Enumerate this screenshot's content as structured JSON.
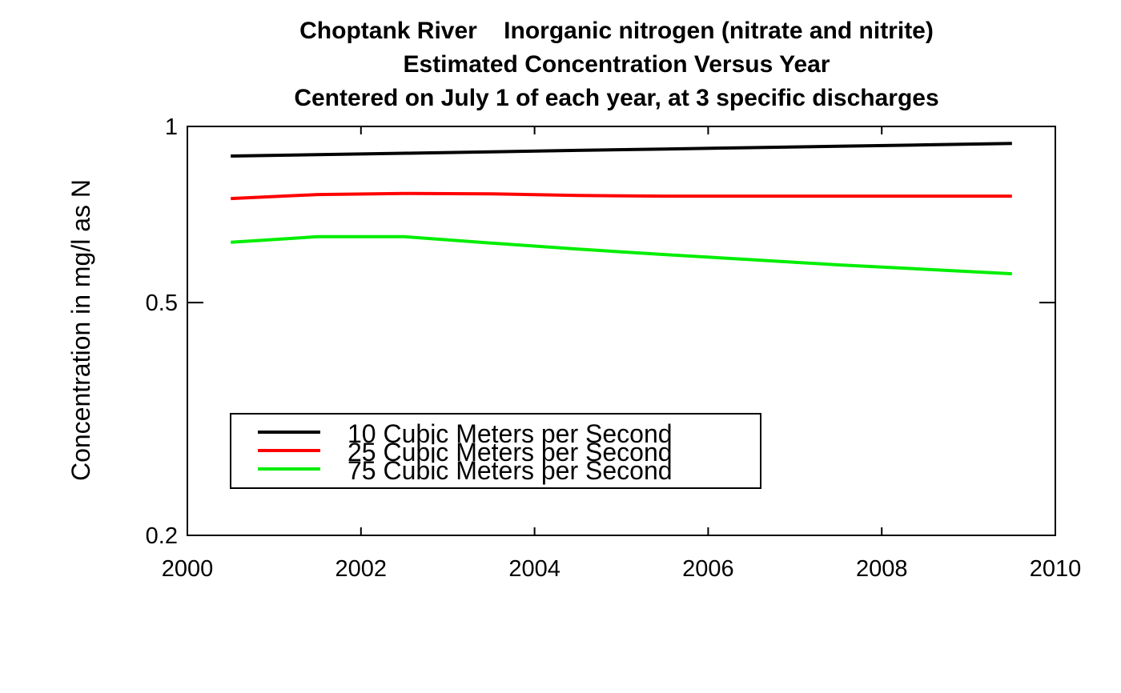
{
  "chart_data": {
    "type": "line",
    "title": [
      "Choptank River    Inorganic nitrogen (nitrate and nitrite)",
      "Estimated Concentration Versus Year",
      "Centered on July 1 of each year, at 3 specific discharges"
    ],
    "xlabel": "",
    "ylabel": "Concentration in mg/l as N",
    "xlim": [
      2000,
      2010
    ],
    "ylim": [
      0.2,
      1
    ],
    "yscale": "log",
    "xticks": [
      2000,
      2002,
      2004,
      2006,
      2008,
      2010
    ],
    "xtick_labels": [
      "2000",
      "2002",
      "2004",
      "2006",
      "2008",
      "2010"
    ],
    "yticks": [
      0.2,
      0.5,
      1
    ],
    "ytick_labels": [
      "0.2",
      "0.5",
      "1"
    ],
    "grid": false,
    "legend_position": "bottom-left",
    "x": [
      2000.5,
      2001.5,
      2002.5,
      2003.5,
      2004.5,
      2005.5,
      2006.5,
      2007.5,
      2008.5,
      2009.5
    ],
    "series": [
      {
        "name": "10 Cubic Meters per Second",
        "color": "#000000",
        "values": [
          0.89,
          0.895,
          0.9,
          0.905,
          0.91,
          0.915,
          0.92,
          0.925,
          0.93,
          0.935
        ]
      },
      {
        "name": "25 Cubic Meters per Second",
        "color": "#ff0000",
        "values": [
          0.753,
          0.765,
          0.768,
          0.767,
          0.762,
          0.76,
          0.76,
          0.76,
          0.76,
          0.76
        ]
      },
      {
        "name": "75 Cubic Meters per Second",
        "color": "#00ee00",
        "values": [
          0.634,
          0.648,
          0.648,
          0.632,
          0.617,
          0.604,
          0.592,
          0.58,
          0.57,
          0.56
        ]
      }
    ]
  }
}
